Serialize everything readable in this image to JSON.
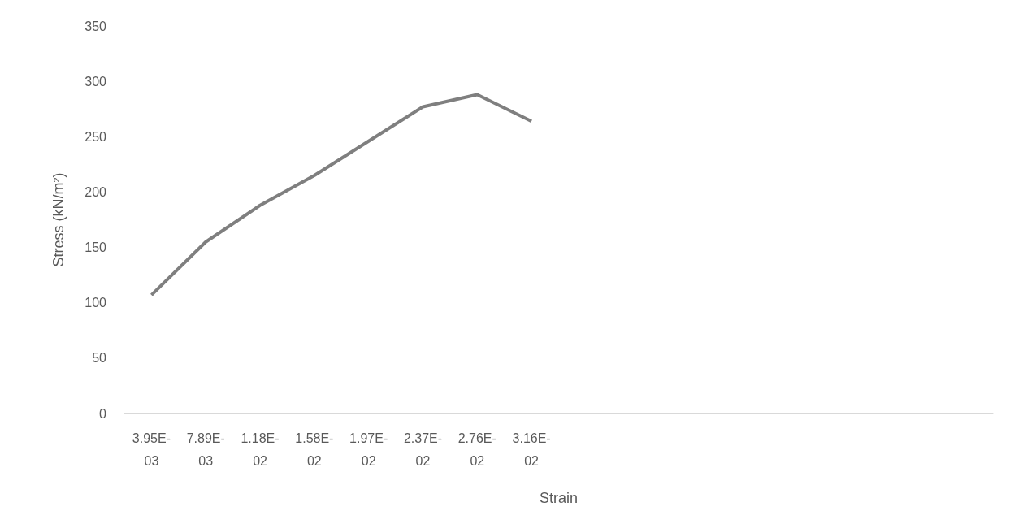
{
  "chart_data": {
    "type": "line",
    "xlabel": "Strain",
    "ylabel": "Stress (kN/m²)",
    "categories": [
      "3.95E-03",
      "7.89E-03",
      "1.18E-02",
      "1.58E-02",
      "1.97E-02",
      "2.37E-02",
      "2.76E-02",
      "3.16E-02",
      null,
      null,
      null,
      null,
      null,
      null,
      null,
      null
    ],
    "series": [
      {
        "color": "#7f7f7f",
        "values": [
          107,
          155,
          188,
          215,
          246,
          277,
          288,
          264,
          null,
          null,
          null,
          null,
          null,
          null,
          null,
          null
        ]
      }
    ],
    "ylim": [
      0,
      350
    ],
    "yticks": [
      0,
      50,
      100,
      150,
      200,
      250,
      300,
      350
    ],
    "grid": false,
    "marker": "none",
    "line_style": "solid"
  }
}
